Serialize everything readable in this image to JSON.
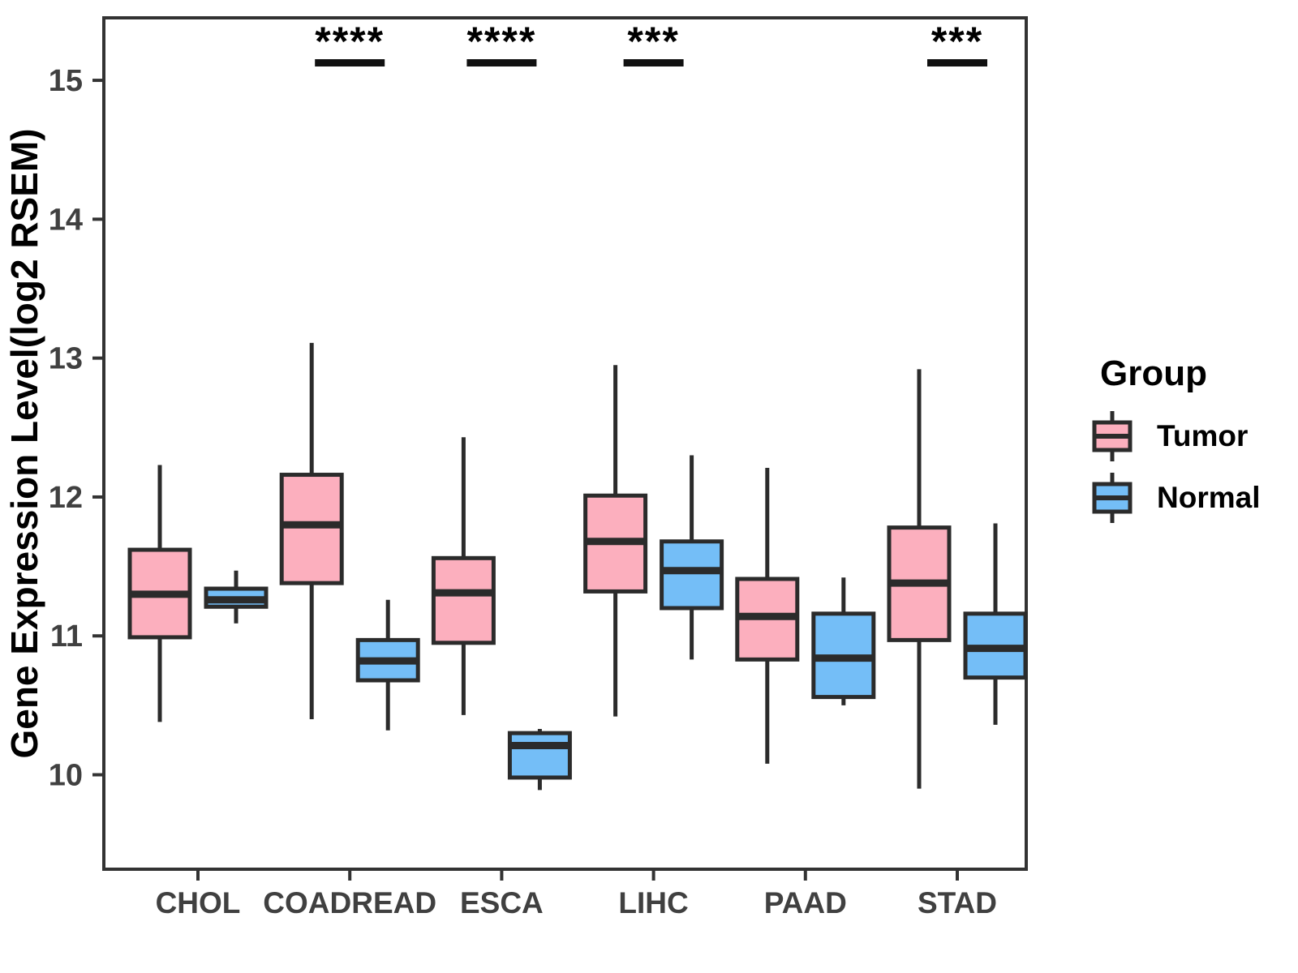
{
  "axes": {
    "y_title": "Gene Expression Level(log2 RSEM)"
  },
  "legend": {
    "title": "Group",
    "items": [
      {
        "label": "Tumor",
        "color": "#FCAFBE"
      },
      {
        "label": "Normal",
        "color": "#74BEF7"
      }
    ]
  },
  "chart_data": {
    "type": "boxplot",
    "title": "",
    "xlabel": "",
    "ylabel": "Gene Expression Level(log2 RSEM)",
    "categories": [
      "CHOL",
      "COADREAD",
      "ESCA",
      "LIHC",
      "PAAD",
      "STAD"
    ],
    "yticks": [
      10,
      11,
      12,
      13,
      14,
      15
    ],
    "ylim": [
      9.32,
      15.45
    ],
    "grid": false,
    "legend_position": "right",
    "stroke_color": "#2B2B2B",
    "series": [
      {
        "name": "Tumor",
        "color": "#FCAFBE",
        "boxes": [
          {
            "category": "CHOL",
            "whisker_low": 10.38,
            "q1": 10.99,
            "median": 11.3,
            "q3": 11.62,
            "whisker_high": 12.23
          },
          {
            "category": "COADREAD",
            "whisker_low": 10.4,
            "q1": 11.38,
            "median": 11.8,
            "q3": 12.16,
            "whisker_high": 13.11
          },
          {
            "category": "ESCA",
            "whisker_low": 10.43,
            "q1": 10.95,
            "median": 11.31,
            "q3": 11.56,
            "whisker_high": 12.43
          },
          {
            "category": "LIHC",
            "whisker_low": 10.42,
            "q1": 11.32,
            "median": 11.68,
            "q3": 12.01,
            "whisker_high": 12.95
          },
          {
            "category": "PAAD",
            "whisker_low": 10.08,
            "q1": 10.83,
            "median": 11.14,
            "q3": 11.41,
            "whisker_high": 12.21
          },
          {
            "category": "STAD",
            "whisker_low": 9.9,
            "q1": 10.97,
            "median": 11.38,
            "q3": 11.78,
            "whisker_high": 12.92
          }
        ]
      },
      {
        "name": "Normal",
        "color": "#74BEF7",
        "boxes": [
          {
            "category": "CHOL",
            "whisker_low": 11.09,
            "q1": 11.21,
            "median": 11.26,
            "q3": 11.34,
            "whisker_high": 11.47
          },
          {
            "category": "COADREAD",
            "whisker_low": 10.32,
            "q1": 10.68,
            "median": 10.82,
            "q3": 10.97,
            "whisker_high": 11.26
          },
          {
            "category": "ESCA",
            "whisker_low": 9.89,
            "q1": 9.98,
            "median": 10.21,
            "q3": 10.3,
            "whisker_high": 10.33
          },
          {
            "category": "LIHC",
            "whisker_low": 10.83,
            "q1": 11.2,
            "median": 11.47,
            "q3": 11.68,
            "whisker_high": 12.3
          },
          {
            "category": "PAAD",
            "whisker_low": 10.5,
            "q1": 10.56,
            "median": 10.84,
            "q3": 11.16,
            "whisker_high": 11.42
          },
          {
            "category": "STAD",
            "whisker_low": 10.36,
            "q1": 10.7,
            "median": 10.91,
            "q3": 11.16,
            "whisker_high": 11.81
          }
        ]
      }
    ],
    "significance": [
      {
        "category": "COADREAD",
        "label": "****"
      },
      {
        "category": "ESCA",
        "label": "****"
      },
      {
        "category": "LIHC",
        "label": "***"
      },
      {
        "category": "STAD",
        "label": "***"
      }
    ]
  }
}
